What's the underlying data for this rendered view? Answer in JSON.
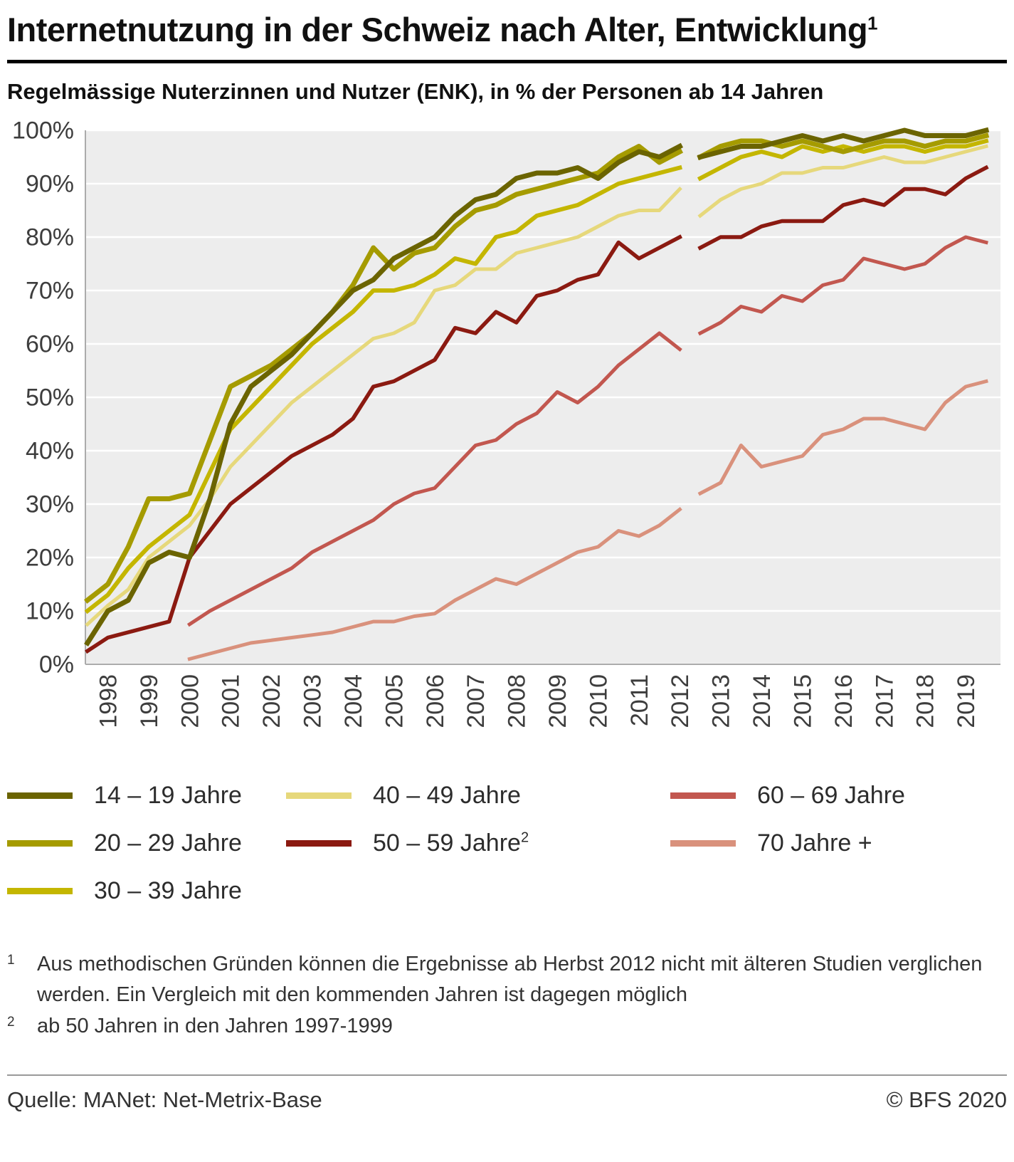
{
  "header": {
    "title": "Internetnutzung in der Schweiz nach Alter, Entwicklung",
    "title_superscript": "1",
    "subtitle": "Regelmässige Nuterzinnen und Nutzer (ENK), in % der Personen ab 14 Jahren"
  },
  "chart_data": {
    "type": "line",
    "title": "Internetnutzung in der Schweiz nach Alter, Entwicklung",
    "subtitle": "Regelmässige Nuterzinnen und Nutzer (ENK), in % der Personen ab 14 Jahren",
    "xlabel": "",
    "ylabel": "",
    "ylim": [
      0,
      100
    ],
    "ytick_step": 10,
    "ytick_suffix": "%",
    "grid": "horizontal-white-on-gray",
    "plot_bg": "#ededed",
    "legend_position": "bottom",
    "series_break_note": "data series are interrupted between 2012 and autumn 2012 (method change)",
    "x_tick_years": [
      1998,
      1999,
      2000,
      2001,
      2002,
      2003,
      2004,
      2005,
      2006,
      2007,
      2008,
      2009,
      2010,
      2011,
      2012,
      2013,
      2014,
      2015,
      2016,
      2017,
      2018,
      2019
    ],
    "series": [
      {
        "label": "14 – 19 Jahre",
        "label_sup": "",
        "color": "#6b6400",
        "pre_break": {
          "x_start": 1997.5,
          "x_step": 0.5,
          "values": [
            4,
            10,
            12,
            19,
            21,
            20,
            31,
            45,
            52,
            55,
            58,
            62,
            66,
            70,
            72,
            76,
            78,
            80,
            84,
            87,
            88,
            91,
            92,
            92,
            93,
            91,
            94,
            96,
            95,
            97
          ]
        },
        "post_break": {
          "x_start": 2012.5,
          "x_step": 0.5,
          "values": [
            95,
            96,
            97,
            97,
            98,
            99,
            98,
            99,
            98,
            99,
            100,
            99,
            99,
            99,
            100
          ]
        }
      },
      {
        "label": "20 – 29 Jahre",
        "label_sup": "",
        "color": "#a59b00",
        "pre_break": {
          "x_start": 1997.5,
          "x_step": 0.5,
          "values": [
            12,
            15,
            22,
            31,
            31,
            32,
            42,
            52,
            54,
            56,
            59,
            62,
            66,
            71,
            78,
            74,
            77,
            78,
            82,
            85,
            86,
            88,
            89,
            90,
            91,
            92,
            95,
            97,
            94,
            96
          ]
        },
        "post_break": {
          "x_start": 2012.5,
          "x_step": 0.5,
          "values": [
            95,
            97,
            98,
            98,
            97,
            98,
            97,
            96,
            97,
            98,
            98,
            97,
            98,
            98,
            99
          ]
        }
      },
      {
        "label": "30 – 39 Jahre",
        "label_sup": "",
        "color": "#c4b600",
        "pre_break": {
          "x_start": 1997.5,
          "x_step": 0.5,
          "values": [
            10,
            13,
            18,
            22,
            25,
            28,
            36,
            44,
            48,
            52,
            56,
            60,
            63,
            66,
            70,
            70,
            71,
            73,
            76,
            75,
            80,
            81,
            84,
            85,
            86,
            88,
            90,
            91,
            92,
            93
          ]
        },
        "post_break": {
          "x_start": 2012.5,
          "x_step": 0.5,
          "values": [
            91,
            93,
            95,
            96,
            95,
            97,
            96,
            97,
            96,
            97,
            97,
            96,
            97,
            97,
            98
          ]
        }
      },
      {
        "label": "40 – 49 Jahre",
        "label_sup": "",
        "color": "#e6d87b",
        "pre_break": {
          "x_start": 1997.5,
          "x_step": 0.5,
          "values": [
            7.5,
            11,
            14,
            20,
            23,
            26,
            31,
            37,
            41,
            45,
            49,
            52,
            55,
            58,
            61,
            62,
            64,
            70,
            71,
            74,
            74,
            77,
            78,
            79,
            80,
            82,
            84,
            85,
            85,
            89
          ]
        },
        "post_break": {
          "x_start": 2012.5,
          "x_step": 0.5,
          "values": [
            84,
            87,
            89,
            90,
            92,
            92,
            93,
            93,
            94,
            95,
            94,
            94,
            95,
            96,
            97
          ]
        }
      },
      {
        "label": "50 – 59 Jahre",
        "label_sup": "2",
        "color": "#8b1a11",
        "pre_break": {
          "x_start": 1997.5,
          "x_step": 0.5,
          "values": [
            2.5,
            5,
            6,
            7,
            8,
            20,
            25,
            30,
            33,
            36,
            39,
            41,
            43,
            46,
            52,
            53,
            55,
            57,
            63,
            62,
            66,
            64,
            69,
            70,
            72,
            73,
            79,
            76,
            78,
            80
          ]
        },
        "post_break": {
          "x_start": 2012.5,
          "x_step": 0.5,
          "values": [
            78,
            80,
            80,
            82,
            83,
            83,
            83,
            86,
            87,
            86,
            89,
            89,
            88,
            91,
            93
          ]
        }
      },
      {
        "label": "60 – 69 Jahre",
        "label_sup": "",
        "color": "#c2574f",
        "pre_break": {
          "x_start": 2000.0,
          "x_step": 0.5,
          "values": [
            7.5,
            10,
            12,
            14,
            16,
            18,
            21,
            23,
            25,
            27,
            30,
            32,
            33,
            37,
            41,
            42,
            45,
            47,
            51,
            49,
            52,
            56,
            59,
            62,
            59
          ]
        },
        "post_break": {
          "x_start": 2012.5,
          "x_step": 0.5,
          "values": [
            62,
            64,
            67,
            66,
            69,
            68,
            71,
            72,
            76,
            75,
            74,
            75,
            78,
            80,
            79
          ]
        }
      },
      {
        "label": "70 Jahre +",
        "label_sup": "",
        "color": "#d9917c",
        "pre_break": {
          "x_start": 2000.0,
          "x_step": 0.5,
          "values": [
            1,
            2,
            3,
            4,
            4.5,
            5,
            5.5,
            6,
            7,
            8,
            8,
            9,
            9.5,
            12,
            14,
            16,
            15,
            17,
            19,
            21,
            22,
            25,
            24,
            26,
            29
          ]
        },
        "post_break": {
          "x_start": 2012.5,
          "x_step": 0.5,
          "values": [
            32,
            34,
            41,
            37,
            38,
            39,
            43,
            44,
            46,
            46,
            45,
            44,
            49,
            52,
            53
          ]
        }
      }
    ]
  },
  "legend": {
    "columns": [
      [
        0,
        1,
        2
      ],
      [
        3,
        4
      ],
      [
        5,
        6
      ]
    ]
  },
  "footnotes": [
    {
      "marker": "1",
      "text": "Aus methodischen Gründen können die Ergebnisse ab Herbst 2012 nicht mit älteren Studien verglichen werden. Ein Vergleich mit den kommenden Jahren ist dagegen möglich"
    },
    {
      "marker": "2",
      "text": "ab 50 Jahren in den Jahren 1997-1999"
    }
  ],
  "footer": {
    "source": "Quelle: MANet: Net-Metrix-Base",
    "copyright": "© BFS 2020"
  }
}
